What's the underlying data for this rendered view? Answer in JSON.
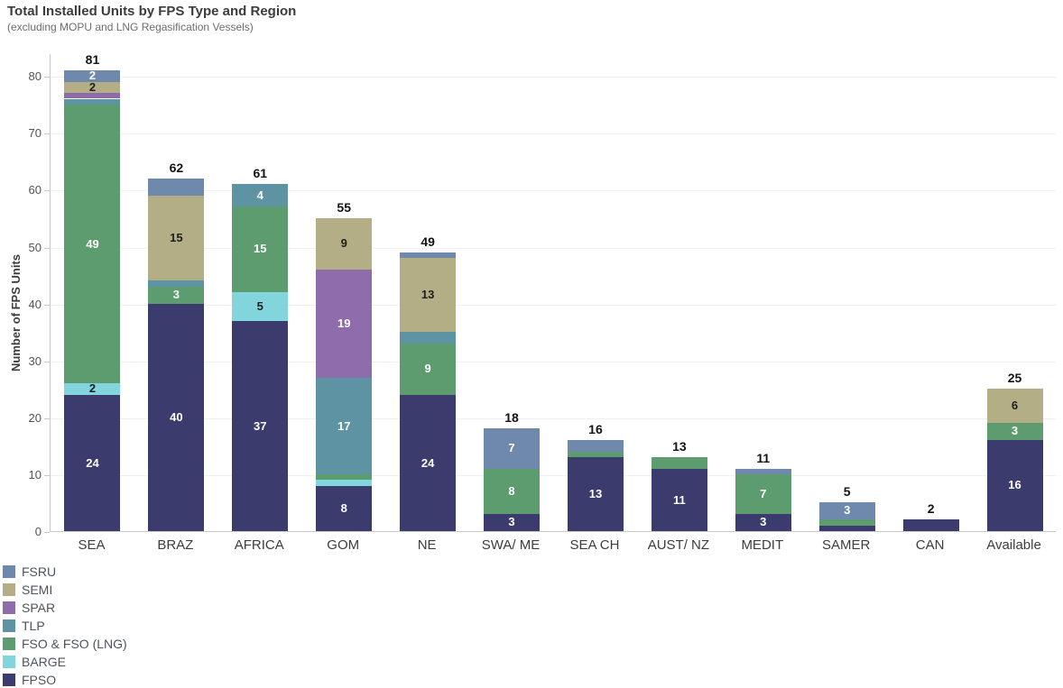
{
  "chart_data": {
    "type": "bar",
    "stacked": true,
    "title": "Total Installed Units by FPS Type and Region",
    "subtitle": "(excluding MOPU and LNG Regasification Vessels)",
    "ylabel": "Number of FPS Units",
    "ylim": [
      0,
      84
    ],
    "yticks": [
      0,
      10,
      20,
      30,
      40,
      50,
      60,
      70,
      80
    ],
    "grid": "faint-horizontal",
    "legend_position": "bottom-left",
    "legend_order": [
      "FSRU",
      "SEMI",
      "SPAR",
      "TLP",
      "FSO & FSO (LNG)",
      "BARGE",
      "FPSO"
    ],
    "stack_order_bottom_to_top": [
      "FPSO",
      "BARGE",
      "FSO & FSO (LNG)",
      "TLP",
      "SPAR",
      "SEMI",
      "FSRU"
    ],
    "colors": {
      "FPSO": "#3c3b6e",
      "BARGE": "#82d5dd",
      "FSO & FSO (LNG)": "#5d9c6e",
      "TLP": "#5d93a3",
      "SPAR": "#8f6dad",
      "SEMI": "#b3ae85",
      "FSRU": "#6f89ad"
    },
    "label_text_colors": {
      "FPSO": "#ffffff",
      "BARGE": "#1e1e1e",
      "FSO & FSO (LNG)": "#ffffff",
      "TLP": "#ffffff",
      "SPAR": "#ffffff",
      "SEMI": "#1e1e1e",
      "FSRU": "#ffffff"
    },
    "categories": [
      "SEA",
      "BRAZ",
      "AFRICA",
      "GOM",
      "NE",
      "SWA/ ME",
      "SEA CH",
      "AUST/ NZ",
      "MEDIT",
      "SAMER",
      "CAN",
      "Available"
    ],
    "totals": [
      81,
      62,
      61,
      55,
      49,
      18,
      16,
      13,
      11,
      5,
      2,
      25
    ],
    "bars": [
      {
        "category": "SEA",
        "total": 81,
        "segments": [
          {
            "type": "FPSO",
            "value": 24,
            "label": "24"
          },
          {
            "type": "BARGE",
            "value": 2,
            "label": "2"
          },
          {
            "type": "FSO & FSO (LNG)",
            "value": 49,
            "label": "49"
          },
          {
            "type": "TLP",
            "value": 1,
            "label": ""
          },
          {
            "type": "SPAR",
            "value": 1,
            "label": ""
          },
          {
            "type": "SEMI",
            "value": 2,
            "label": "2"
          },
          {
            "type": "FSRU",
            "value": 2,
            "label": "2"
          }
        ]
      },
      {
        "category": "BRAZ",
        "total": 62,
        "segments": [
          {
            "type": "FPSO",
            "value": 40,
            "label": "40"
          },
          {
            "type": "FSO & FSO (LNG)",
            "value": 3,
            "label": "3"
          },
          {
            "type": "TLP",
            "value": 1,
            "label": ""
          },
          {
            "type": "SEMI",
            "value": 15,
            "label": "15"
          },
          {
            "type": "FSRU",
            "value": 3,
            "label": ""
          }
        ]
      },
      {
        "category": "AFRICA",
        "total": 61,
        "segments": [
          {
            "type": "FPSO",
            "value": 37,
            "label": "37"
          },
          {
            "type": "BARGE",
            "value": 5,
            "label": "5"
          },
          {
            "type": "FSO & FSO (LNG)",
            "value": 15,
            "label": "15"
          },
          {
            "type": "TLP",
            "value": 4,
            "label": "4"
          }
        ]
      },
      {
        "category": "GOM",
        "total": 55,
        "segments": [
          {
            "type": "FPSO",
            "value": 8,
            "label": "8"
          },
          {
            "type": "BARGE",
            "value": 1,
            "label": ""
          },
          {
            "type": "FSO & FSO (LNG)",
            "value": 1,
            "label": ""
          },
          {
            "type": "TLP",
            "value": 17,
            "label": "17"
          },
          {
            "type": "SPAR",
            "value": 19,
            "label": "19"
          },
          {
            "type": "SEMI",
            "value": 9,
            "label": "9"
          }
        ]
      },
      {
        "category": "NE",
        "total": 49,
        "segments": [
          {
            "type": "FPSO",
            "value": 24,
            "label": "24"
          },
          {
            "type": "FSO & FSO (LNG)",
            "value": 9,
            "label": "9"
          },
          {
            "type": "TLP",
            "value": 2,
            "label": ""
          },
          {
            "type": "SEMI",
            "value": 13,
            "label": "13"
          },
          {
            "type": "FSRU",
            "value": 1,
            "label": ""
          }
        ]
      },
      {
        "category": "SWA/ ME",
        "total": 18,
        "segments": [
          {
            "type": "FPSO",
            "value": 3,
            "label": "3"
          },
          {
            "type": "FSO & FSO (LNG)",
            "value": 8,
            "label": "8"
          },
          {
            "type": "FSRU",
            "value": 7,
            "label": "7"
          }
        ]
      },
      {
        "category": "SEA CH",
        "total": 16,
        "segments": [
          {
            "type": "FPSO",
            "value": 13,
            "label": "13"
          },
          {
            "type": "FSO & FSO (LNG)",
            "value": 1,
            "label": ""
          },
          {
            "type": "FSRU",
            "value": 2,
            "label": ""
          }
        ]
      },
      {
        "category": "AUST/ NZ",
        "total": 13,
        "segments": [
          {
            "type": "FPSO",
            "value": 11,
            "label": "11"
          },
          {
            "type": "FSO & FSO (LNG)",
            "value": 2,
            "label": ""
          }
        ]
      },
      {
        "category": "MEDIT",
        "total": 11,
        "segments": [
          {
            "type": "FPSO",
            "value": 3,
            "label": "3"
          },
          {
            "type": "FSO & FSO (LNG)",
            "value": 7,
            "label": "7"
          },
          {
            "type": "FSRU",
            "value": 1,
            "label": ""
          }
        ]
      },
      {
        "category": "SAMER",
        "total": 5,
        "segments": [
          {
            "type": "FPSO",
            "value": 1,
            "label": ""
          },
          {
            "type": "FSO & FSO (LNG)",
            "value": 1,
            "label": ""
          },
          {
            "type": "FSRU",
            "value": 3,
            "label": "3"
          }
        ]
      },
      {
        "category": "CAN",
        "total": 2,
        "segments": [
          {
            "type": "FPSO",
            "value": 2,
            "label": ""
          }
        ]
      },
      {
        "category": "Available",
        "total": 25,
        "segments": [
          {
            "type": "FPSO",
            "value": 16,
            "label": "16"
          },
          {
            "type": "FSO & FSO (LNG)",
            "value": 3,
            "label": "3"
          },
          {
            "type": "SEMI",
            "value": 6,
            "label": "6"
          }
        ]
      }
    ]
  }
}
